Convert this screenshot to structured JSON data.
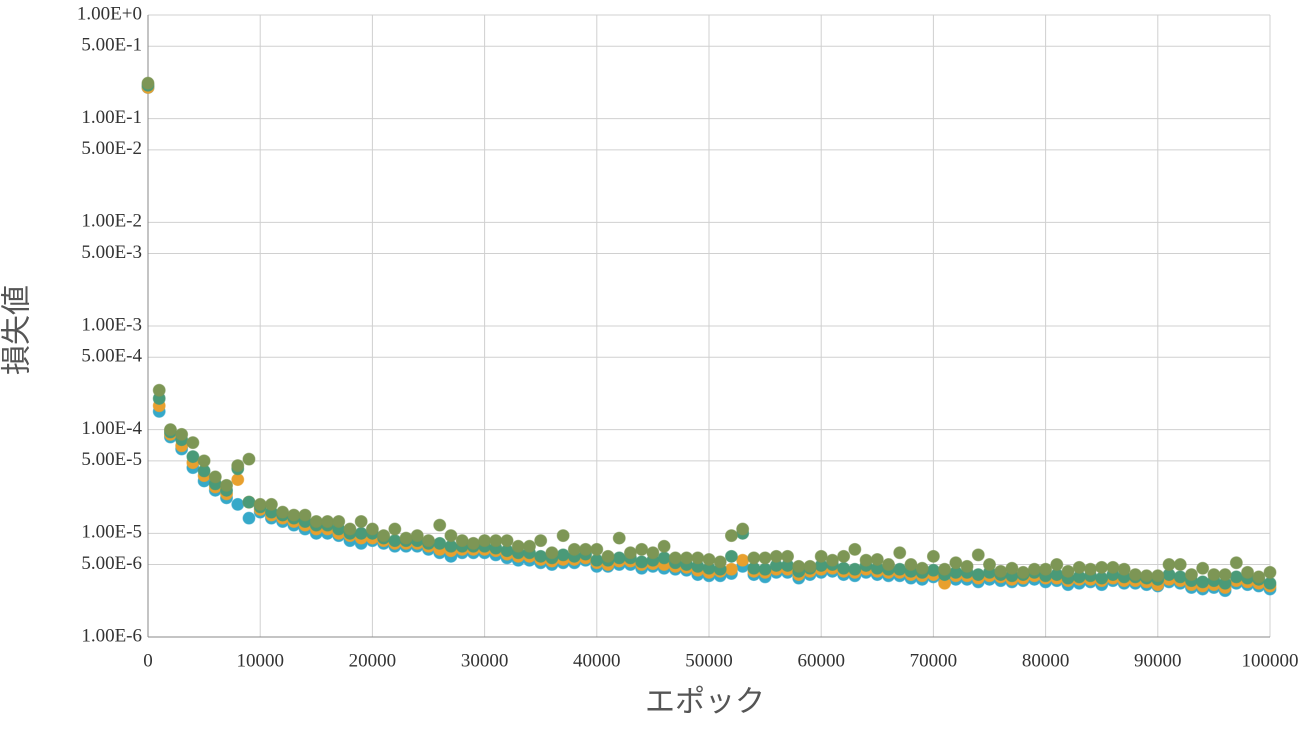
{
  "chart_data": {
    "type": "scatter",
    "x_label": "エポック",
    "y_label": "損失値",
    "xlim": [
      0,
      100000
    ],
    "xticks": [
      0,
      10000,
      20000,
      30000,
      40000,
      50000,
      60000,
      70000,
      80000,
      90000,
      100000
    ],
    "ylim": [
      1e-06,
      1
    ],
    "log_y": true,
    "grid": true,
    "yticks": [
      {
        "value": 1,
        "label": "1.00E+0"
      },
      {
        "value": 0.5,
        "label": "5.00E-1"
      },
      {
        "value": 0.1,
        "label": "1.00E-1"
      },
      {
        "value": 0.05,
        "label": "5.00E-2"
      },
      {
        "value": 0.01,
        "label": "1.00E-2"
      },
      {
        "value": 0.005,
        "label": "5.00E-3"
      },
      {
        "value": 0.001,
        "label": "1.00E-3"
      },
      {
        "value": 0.0005,
        "label": "5.00E-4"
      },
      {
        "value": 0.0001,
        "label": "1.00E-4"
      },
      {
        "value": 5e-05,
        "label": "5.00E-5"
      },
      {
        "value": 1e-05,
        "label": "1.00E-5"
      },
      {
        "value": 5e-06,
        "label": "5.00E-6"
      },
      {
        "value": 1e-06,
        "label": "1.00E-6"
      }
    ],
    "x": [
      0,
      1000,
      2000,
      3000,
      4000,
      5000,
      6000,
      7000,
      8000,
      9000,
      10000,
      11000,
      12000,
      13000,
      14000,
      15000,
      16000,
      17000,
      18000,
      19000,
      20000,
      21000,
      22000,
      23000,
      24000,
      25000,
      26000,
      27000,
      28000,
      29000,
      30000,
      31000,
      32000,
      33000,
      34000,
      35000,
      36000,
      37000,
      38000,
      39000,
      40000,
      41000,
      42000,
      43000,
      44000,
      45000,
      46000,
      47000,
      48000,
      49000,
      50000,
      51000,
      52000,
      53000,
      54000,
      55000,
      56000,
      57000,
      58000,
      59000,
      60000,
      61000,
      62000,
      63000,
      64000,
      65000,
      66000,
      67000,
      68000,
      69000,
      70000,
      71000,
      72000,
      73000,
      74000,
      75000,
      76000,
      77000,
      78000,
      79000,
      80000,
      81000,
      82000,
      83000,
      84000,
      85000,
      86000,
      87000,
      88000,
      89000,
      90000,
      91000,
      92000,
      93000,
      94000,
      95000,
      96000,
      97000,
      98000,
      99000,
      100000
    ],
    "series": [
      {
        "color": "#36a9c9",
        "values": [
          0.2,
          0.00015,
          8.5e-05,
          6.5e-05,
          4.3e-05,
          3.2e-05,
          2.6e-05,
          2.2e-05,
          1.9e-05,
          1.4e-05,
          1.6e-05,
          1.4e-05,
          1.3e-05,
          1.2e-05,
          1.1e-05,
          1e-05,
          1e-05,
          9.5e-06,
          8.5e-06,
          8e-06,
          8.5e-06,
          8e-06,
          7.5e-06,
          7.5e-06,
          7.5e-06,
          7e-06,
          6.5e-06,
          6e-06,
          6.5e-06,
          6.5e-06,
          6.5e-06,
          6.2e-06,
          5.8e-06,
          5.5e-06,
          5.5e-06,
          5.2e-06,
          5e-06,
          5.2e-06,
          5.2e-06,
          5.5e-06,
          4.8e-06,
          4.8e-06,
          5e-06,
          5e-06,
          4.6e-06,
          4.8e-06,
          4.6e-06,
          4.5e-06,
          4.4e-06,
          4e-06,
          3.9e-06,
          3.9e-06,
          4.1e-06,
          4.8e-06,
          4e-06,
          3.8e-06,
          4.2e-06,
          4.2e-06,
          3.7e-06,
          4e-06,
          4.2e-06,
          4.3e-06,
          4e-06,
          3.9e-06,
          4.2e-06,
          4e-06,
          3.9e-06,
          3.9e-06,
          3.7e-06,
          3.6e-06,
          3.8e-06,
          3.5e-06,
          3.6e-06,
          3.6e-06,
          3.4e-06,
          3.6e-06,
          3.5e-06,
          3.4e-06,
          3.5e-06,
          3.6e-06,
          3.4e-06,
          3.5e-06,
          3.2e-06,
          3.3e-06,
          3.4e-06,
          3.2e-06,
          3.5e-06,
          3.3e-06,
          3.3e-06,
          3.2e-06,
          3.1e-06,
          3.4e-06,
          3.3e-06,
          3e-06,
          2.9e-06,
          3e-06,
          2.8e-06,
          3.3e-06,
          3.2e-06,
          3.1e-06,
          2.9e-06
        ]
      },
      {
        "color": "#e8a02e",
        "values": [
          0.2,
          0.00017,
          9e-05,
          7e-05,
          4.8e-05,
          3.6e-05,
          2.8e-05,
          2.4e-05,
          3.3e-05,
          2e-05,
          1.7e-05,
          1.5e-05,
          1.4e-05,
          1.3e-05,
          1.2e-05,
          1.1e-05,
          1.1e-05,
          1e-05,
          9.5e-06,
          9e-06,
          9e-06,
          8.5e-06,
          8e-06,
          8e-06,
          8e-06,
          7.5e-06,
          7e-06,
          6.8e-06,
          7e-06,
          7e-06,
          7e-06,
          6.8e-06,
          6.3e-06,
          6e-06,
          6e-06,
          5.6e-06,
          5.4e-06,
          5.6e-06,
          5.6e-06,
          5.8e-06,
          5.2e-06,
          5e-06,
          5.4e-06,
          5.4e-06,
          5e-06,
          5.1e-06,
          5e-06,
          4.8e-06,
          4.7e-06,
          4.4e-06,
          4.2e-06,
          4.3e-06,
          4.5e-06,
          5.5e-06,
          4.3e-06,
          4.2e-06,
          4.5e-06,
          4.5e-06,
          4e-06,
          4.3e-06,
          4.5e-06,
          4.6e-06,
          4.3e-06,
          4.2e-06,
          4.5e-06,
          4.3e-06,
          4.2e-06,
          4.2e-06,
          4e-06,
          3.9e-06,
          4e-06,
          3.3e-06,
          3.9e-06,
          3.9e-06,
          3.7e-06,
          3.9e-06,
          3.8e-06,
          3.6e-06,
          3.7e-06,
          3.9e-06,
          3.7e-06,
          3.7e-06,
          3.5e-06,
          3.6e-06,
          3.6e-06,
          3.5e-06,
          3.7e-06,
          3.5e-06,
          3.5e-06,
          3.4e-06,
          3.2e-06,
          3.6e-06,
          3.5e-06,
          3.2e-06,
          3.1e-06,
          3.2e-06,
          3e-06,
          3.5e-06,
          3.4e-06,
          3.3e-06,
          3.1e-06
        ]
      },
      {
        "color": "#4a9a78",
        "values": [
          0.21,
          0.0002,
          9.5e-05,
          8e-05,
          5.5e-05,
          4e-05,
          3e-05,
          2.6e-05,
          4.2e-05,
          2e-05,
          1.8e-05,
          1.6e-05,
          1.5e-05,
          1.4e-05,
          1.3e-05,
          1.2e-05,
          1.2e-05,
          1.1e-05,
          1e-05,
          1e-05,
          1e-05,
          9e-06,
          8.5e-06,
          8.5e-06,
          8.5e-06,
          8e-06,
          8e-06,
          7.5e-06,
          7.5e-06,
          7.5e-06,
          7.5e-06,
          7.2e-06,
          6.8e-06,
          6.5e-06,
          6.5e-06,
          6e-06,
          5.8e-06,
          6.2e-06,
          6e-06,
          6.3e-06,
          5.5e-06,
          5.5e-06,
          5.8e-06,
          5.8e-06,
          5.3e-06,
          5.5e-06,
          5.8e-06,
          5.2e-06,
          5e-06,
          4.8e-06,
          4.6e-06,
          4.5e-06,
          6e-06,
          1e-05,
          4.6e-06,
          4.5e-06,
          4.9e-06,
          4.9e-06,
          4.3e-06,
          4.6e-06,
          4.9e-06,
          5e-06,
          4.6e-06,
          4.5e-06,
          4.9e-06,
          4.6e-06,
          4.5e-06,
          4.5e-06,
          4.3e-06,
          4.2e-06,
          4.4e-06,
          4e-06,
          4.2e-06,
          4.2e-06,
          4e-06,
          4.2e-06,
          4e-06,
          3.9e-06,
          4e-06,
          4.2e-06,
          3.9e-06,
          4e-06,
          3.7e-06,
          3.8e-06,
          3.9e-06,
          3.7e-06,
          4e-06,
          3.8e-06,
          3.8e-06,
          3.7e-06,
          3.6e-06,
          4e-06,
          3.8e-06,
          3.5e-06,
          3.4e-06,
          3.5e-06,
          3.3e-06,
          3.8e-06,
          3.7e-06,
          3.6e-06,
          3.3e-06
        ]
      },
      {
        "color": "#7d9655",
        "values": [
          0.22,
          0.00024,
          0.0001,
          9e-05,
          7.5e-05,
          5e-05,
          3.5e-05,
          2.9e-05,
          4.5e-05,
          5.2e-05,
          1.9e-05,
          1.9e-05,
          1.6e-05,
          1.5e-05,
          1.5e-05,
          1.3e-05,
          1.3e-05,
          1.3e-05,
          1.1e-05,
          1.3e-05,
          1.1e-05,
          9.5e-06,
          1.1e-05,
          9e-06,
          9.5e-06,
          8.5e-06,
          1.2e-05,
          9.5e-06,
          8.5e-06,
          8e-06,
          8.5e-06,
          8.5e-06,
          8.5e-06,
          7.5e-06,
          7.5e-06,
          8.5e-06,
          6.5e-06,
          9.5e-06,
          7e-06,
          7e-06,
          7e-06,
          6e-06,
          9e-06,
          6.5e-06,
          7e-06,
          6.5e-06,
          7.5e-06,
          5.8e-06,
          5.8e-06,
          5.8e-06,
          5.6e-06,
          5.3e-06,
          9.5e-06,
          1.1e-05,
          5.8e-06,
          5.8e-06,
          6e-06,
          6e-06,
          4.8e-06,
          4.8e-06,
          6e-06,
          5.5e-06,
          6e-06,
          7e-06,
          5.5e-06,
          5.6e-06,
          5e-06,
          6.5e-06,
          5e-06,
          4.6e-06,
          6e-06,
          4.5e-06,
          5.2e-06,
          4.8e-06,
          6.2e-06,
          5e-06,
          4.3e-06,
          4.6e-06,
          4.2e-06,
          4.5e-06,
          4.5e-06,
          5e-06,
          4.3e-06,
          4.7e-06,
          4.5e-06,
          4.7e-06,
          4.7e-06,
          4.5e-06,
          4e-06,
          3.9e-06,
          3.9e-06,
          5e-06,
          5e-06,
          4e-06,
          4.6e-06,
          4e-06,
          4e-06,
          5.2e-06,
          4.2e-06,
          3.8e-06,
          4.2e-06
        ]
      }
    ]
  }
}
